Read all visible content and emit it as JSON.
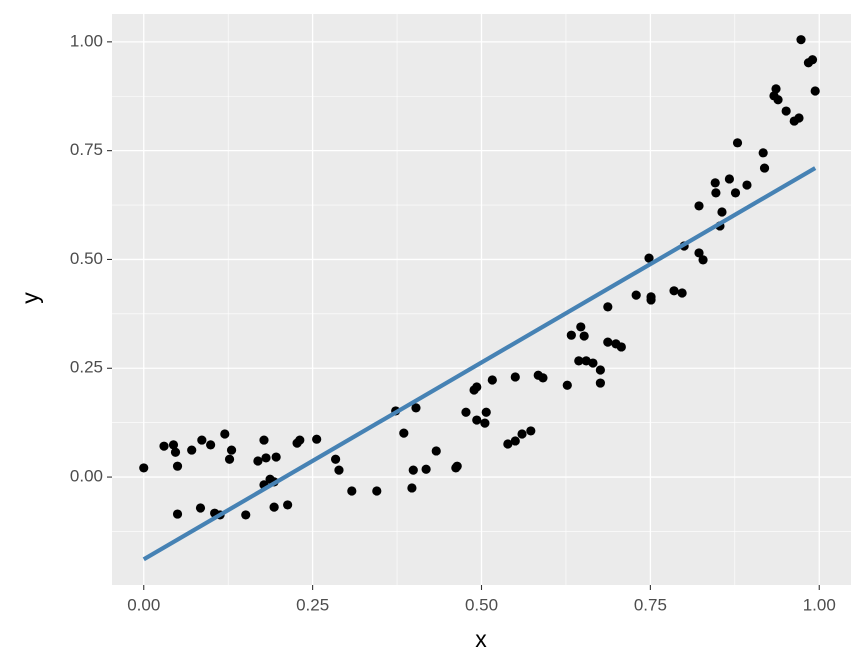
{
  "chart_data": {
    "type": "scatter",
    "x_label": "x",
    "y_label": "y",
    "xlim": [
      -0.047,
      1.047
    ],
    "ylim": [
      -0.248,
      1.064
    ],
    "xticks": [
      {
        "value": 0,
        "label": "0.00"
      },
      {
        "value": 0.25,
        "label": "0.25"
      },
      {
        "value": 0.5,
        "label": "0.50"
      },
      {
        "value": 0.75,
        "label": "0.75"
      },
      {
        "value": 1,
        "label": "1.00"
      }
    ],
    "yticks": [
      {
        "value": 0,
        "label": "0.00"
      },
      {
        "value": 0.25,
        "label": "0.25"
      },
      {
        "value": 0.5,
        "label": "0.50"
      },
      {
        "value": 0.75,
        "label": "0.75"
      },
      {
        "value": 1,
        "label": "1.00"
      }
    ],
    "x_minor_grid": [
      0.125,
      0.375,
      0.625,
      0.875
    ],
    "y_minor_grid": [
      -0.125,
      0.125,
      0.375,
      0.625,
      0.875
    ],
    "grid": true,
    "points": {
      "color": "#000000",
      "x": [
        0.0,
        0.03,
        0.044,
        0.047,
        0.05,
        0.05,
        0.071,
        0.084,
        0.086,
        0.099,
        0.105,
        0.113,
        0.12,
        0.127,
        0.13,
        0.151,
        0.169,
        0.178,
        0.178,
        0.181,
        0.187,
        0.193,
        0.193,
        0.196,
        0.213,
        0.227,
        0.231,
        0.256,
        0.284,
        0.289,
        0.308,
        0.345,
        0.373,
        0.385,
        0.397,
        0.399,
        0.403,
        0.418,
        0.433,
        0.462,
        0.464,
        0.477,
        0.489,
        0.493,
        0.493,
        0.505,
        0.507,
        0.516,
        0.539,
        0.55,
        0.55,
        0.56,
        0.573,
        0.584,
        0.591,
        0.627,
        0.633,
        0.644,
        0.647,
        0.652,
        0.655,
        0.665,
        0.676,
        0.676,
        0.687,
        0.687,
        0.699,
        0.707,
        0.729,
        0.748,
        0.751,
        0.751,
        0.785,
        0.797,
        0.8,
        0.822,
        0.822,
        0.828,
        0.846,
        0.847,
        0.853,
        0.856,
        0.867,
        0.876,
        0.879,
        0.893,
        0.917,
        0.919,
        0.933,
        0.936,
        0.939,
        0.951,
        0.963,
        0.97,
        0.973,
        0.984,
        0.99,
        0.994
      ],
      "values": [
        0.021,
        0.071,
        0.074,
        0.057,
        0.025,
        -0.085,
        0.062,
        -0.071,
        0.085,
        0.074,
        -0.083,
        -0.087,
        0.099,
        0.041,
        0.062,
        -0.087,
        0.037,
        0.085,
        -0.018,
        0.044,
        -0.005,
        -0.069,
        -0.011,
        0.046,
        -0.064,
        0.078,
        0.085,
        0.087,
        0.041,
        0.016,
        -0.032,
        -0.032,
        0.152,
        0.101,
        -0.025,
        0.016,
        0.159,
        0.018,
        0.06,
        0.021,
        0.025,
        0.149,
        0.2,
        0.207,
        0.131,
        0.124,
        0.149,
        0.223,
        0.076,
        0.083,
        0.23,
        0.099,
        0.106,
        0.234,
        0.228,
        0.211,
        0.326,
        0.267,
        0.345,
        0.324,
        0.267,
        0.262,
        0.246,
        0.216,
        0.31,
        0.391,
        0.306,
        0.299,
        0.418,
        0.503,
        0.414,
        0.407,
        0.428,
        0.423,
        0.531,
        0.515,
        0.623,
        0.499,
        0.676,
        0.653,
        0.577,
        0.609,
        0.685,
        0.653,
        0.768,
        0.671,
        0.745,
        0.71,
        0.876,
        0.892,
        0.867,
        0.841,
        0.818,
        0.825,
        1.005,
        0.952,
        0.959,
        0.887
      ]
    },
    "fit": {
      "color": "#4682b4",
      "x": [
        0.0,
        0.994
      ],
      "values": [
        -0.189,
        0.71
      ]
    }
  }
}
